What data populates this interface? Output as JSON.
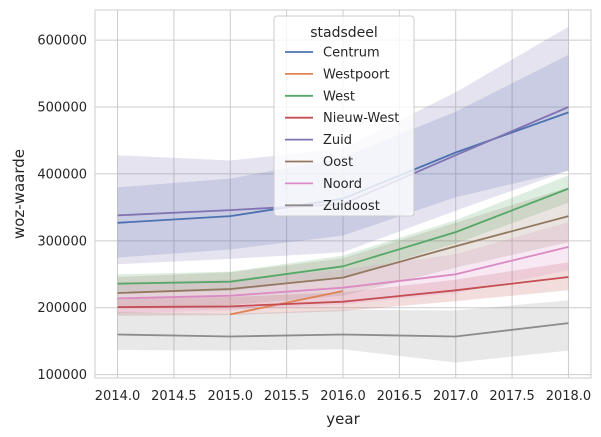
{
  "chart_data": {
    "type": "line",
    "xlabel": "year",
    "ylabel": "woz-waarde",
    "x": [
      2014,
      2015,
      2016,
      2017,
      2018
    ],
    "xlim": [
      2013.8,
      2018.2
    ],
    "ylim": [
      95000,
      645000
    ],
    "xticks": [
      "2014.0",
      "2014.5",
      "2015.0",
      "2015.5",
      "2016.0",
      "2016.5",
      "2017.0",
      "2017.5",
      "2018.0"
    ],
    "yticks": [
      "100000",
      "200000",
      "300000",
      "400000",
      "500000",
      "600000"
    ],
    "grid": true,
    "legend": {
      "title": "stadsdeel",
      "placement": "top-center"
    },
    "series": [
      {
        "name": "Centrum",
        "color": "#4c72b0",
        "points": [
          [
            2014,
            327000
          ],
          [
            2015,
            337000
          ],
          [
            2016,
            363000
          ],
          [
            2017,
            432000
          ],
          [
            2018,
            492000
          ]
        ],
        "ci_low": [
          275000,
          287000,
          308000,
          365000,
          405000
        ],
        "ci_high": [
          380000,
          393000,
          425000,
          493000,
          578000
        ]
      },
      {
        "name": "Westpoort",
        "color": "#dd8452",
        "points": [
          [
            2015,
            190000
          ],
          [
            2016,
            225000
          ]
        ]
      },
      {
        "name": "West",
        "color": "#55a868",
        "points": [
          [
            2014,
            236000
          ],
          [
            2015,
            239000
          ],
          [
            2016,
            262000
          ],
          [
            2017,
            313000
          ],
          [
            2018,
            378000
          ]
        ],
        "ci_low": [
          222000,
          225000,
          246000,
          296000,
          357000
        ],
        "ci_high": [
          250000,
          254000,
          278000,
          331000,
          398000
        ]
      },
      {
        "name": "Nieuw-West",
        "color": "#c44e52",
        "points": [
          [
            2014,
            201000
          ],
          [
            2015,
            202000
          ],
          [
            2016,
            209000
          ],
          [
            2017,
            226000
          ],
          [
            2018,
            246000
          ]
        ],
        "ci_low": [
          188000,
          189000,
          195000,
          210000,
          226000
        ],
        "ci_high": [
          214000,
          216000,
          223000,
          242000,
          268000
        ]
      },
      {
        "name": "Zuid",
        "color": "#8172b3",
        "points": [
          [
            2014,
            338000
          ],
          [
            2015,
            346000
          ],
          [
            2016,
            355000
          ],
          [
            2017,
            428000
          ],
          [
            2018,
            500000
          ]
        ],
        "ci_low": [
          265000,
          273000,
          283000,
          345000,
          405000
        ],
        "ci_high": [
          428000,
          420000,
          438000,
          522000,
          620000
        ]
      },
      {
        "name": "Oost",
        "color": "#937860",
        "points": [
          [
            2014,
            222000
          ],
          [
            2015,
            228000
          ],
          [
            2016,
            245000
          ],
          [
            2017,
            292000
          ],
          [
            2018,
            337000
          ]
        ],
        "ci_low": [
          199000,
          204000,
          218000,
          260000,
          298000
        ],
        "ci_high": [
          246000,
          253000,
          274000,
          327000,
          380000
        ]
      },
      {
        "name": "Noord",
        "color": "#da8bc3",
        "points": [
          [
            2014,
            214000
          ],
          [
            2015,
            218000
          ],
          [
            2016,
            230000
          ],
          [
            2017,
            250000
          ],
          [
            2018,
            291000
          ]
        ],
        "ci_low": [
          192000,
          196000,
          205000,
          222000,
          256000
        ],
        "ci_high": [
          238000,
          242000,
          257000,
          280000,
          328000
        ]
      },
      {
        "name": "Zuidoost",
        "color": "#8c8c8c",
        "points": [
          [
            2014,
            160000
          ],
          [
            2015,
            157000
          ],
          [
            2016,
            160000
          ],
          [
            2017,
            157000
          ],
          [
            2018,
            177000
          ]
        ],
        "ci_low": [
          137000,
          136000,
          138000,
          118000,
          136000
        ],
        "ci_high": [
          194000,
          191000,
          197000,
          196000,
          211000
        ]
      }
    ]
  }
}
